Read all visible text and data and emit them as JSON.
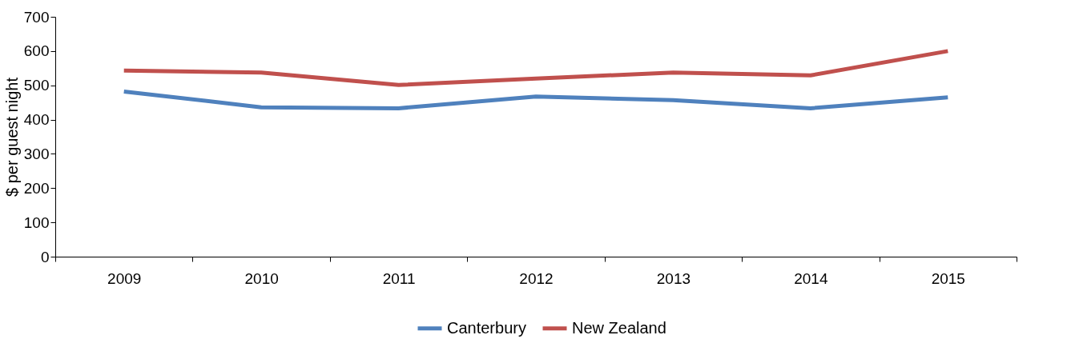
{
  "chart_data": {
    "type": "line",
    "ylabel": "$ per guest night",
    "categories": [
      "2009",
      "2010",
      "2011",
      "2012",
      "2013",
      "2014",
      "2015"
    ],
    "series": [
      {
        "name": "Canterbury",
        "color": "#4f81bd",
        "values": [
          482,
          436,
          433,
          467,
          457,
          433,
          465
        ]
      },
      {
        "name": "New Zealand",
        "color": "#c0504d",
        "values": [
          543,
          537,
          501,
          520,
          537,
          529,
          600
        ]
      }
    ],
    "ylim": [
      0,
      700
    ],
    "yticks": [
      0,
      100,
      200,
      300,
      400,
      500,
      600,
      700
    ],
    "grid": false,
    "legend": "bottom",
    "marker": "none",
    "line_style": "solid"
  }
}
